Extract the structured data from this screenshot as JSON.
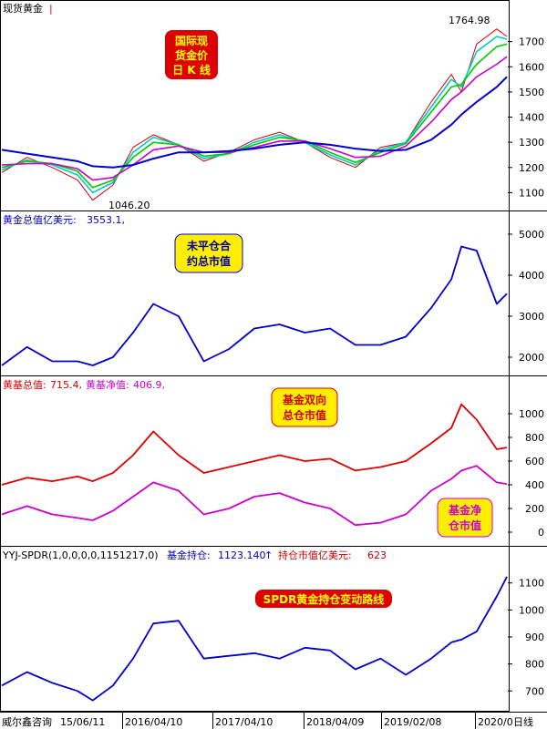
{
  "colors": {
    "blue": "#0000cc",
    "green": "#00cc00",
    "cyan": "#00cccc",
    "magenta": "#cc00cc",
    "red": "#dd0000",
    "annotation_red_bg": "#dd0000",
    "annotation_yellow_bg": "#ffee00",
    "annotation_yellow_text": "#cc0000",
    "annotation_blue_text": "#000099"
  },
  "footer": {
    "source": "威尔鑫咨询",
    "date_start": "15/06/11",
    "dates": [
      "2016/04/10",
      "2017/04/10",
      "2018/04/09",
      "2019/02/08",
      "2020/0"
    ],
    "period": "日线"
  },
  "chart_data": [
    {
      "id": "spot-gold",
      "type": "line",
      "header": {
        "name": "现货黄金",
        "suffix": "|"
      },
      "annotation": [
        "国际现",
        "货金价",
        "日 K 线"
      ],
      "ylim": [
        1040,
        1800
      ],
      "yticks": [
        1100,
        1200,
        1300,
        1400,
        1500,
        1600,
        1700
      ],
      "labels": {
        "max": "1764.98",
        "min": "1046.20"
      },
      "x": [
        0,
        5,
        10,
        15,
        18,
        22,
        26,
        30,
        35,
        40,
        45,
        50,
        55,
        60,
        65,
        70,
        75,
        80,
        85,
        89,
        91,
        94,
        98,
        100
      ],
      "series": [
        {
          "role": "price",
          "values": [
            1180,
            1240,
            1200,
            1150,
            1070,
            1130,
            1280,
            1330,
            1290,
            1225,
            1260,
            1310,
            1340,
            1300,
            1240,
            1200,
            1280,
            1300,
            1460,
            1570,
            1500,
            1690,
            1750,
            1720
          ]
        },
        {
          "role": "ma1",
          "values": [
            1190,
            1230,
            1210,
            1170,
            1100,
            1140,
            1260,
            1320,
            1290,
            1235,
            1255,
            1300,
            1330,
            1300,
            1250,
            1210,
            1270,
            1300,
            1440,
            1550,
            1520,
            1660,
            1720,
            1710
          ]
        },
        {
          "role": "ma2",
          "values": [
            1200,
            1225,
            1215,
            1185,
            1120,
            1150,
            1240,
            1300,
            1290,
            1245,
            1255,
            1290,
            1320,
            1305,
            1260,
            1220,
            1260,
            1295,
            1420,
            1520,
            1530,
            1610,
            1680,
            1690
          ]
        },
        {
          "role": "ma3",
          "values": [
            1210,
            1215,
            1215,
            1195,
            1150,
            1160,
            1210,
            1270,
            1285,
            1260,
            1260,
            1280,
            1305,
            1305,
            1275,
            1240,
            1245,
            1285,
            1380,
            1470,
            1500,
            1560,
            1610,
            1640
          ]
        },
        {
          "role": "ma4",
          "values": [
            1270,
            1255,
            1240,
            1225,
            1205,
            1200,
            1210,
            1235,
            1260,
            1260,
            1265,
            1275,
            1290,
            1300,
            1290,
            1275,
            1265,
            1270,
            1310,
            1370,
            1410,
            1460,
            1520,
            1560
          ]
        }
      ]
    },
    {
      "id": "gold-total-value",
      "type": "line",
      "header": {
        "label": "黄金总值亿美元:",
        "value": "3553.1,"
      },
      "annotation": [
        "未平仓合",
        "约总市值"
      ],
      "ylim": [
        1600,
        5200
      ],
      "yticks": [
        2000,
        3000,
        4000,
        5000
      ],
      "x": [
        0,
        5,
        10,
        15,
        18,
        22,
        26,
        30,
        35,
        40,
        45,
        50,
        55,
        60,
        65,
        70,
        75,
        80,
        85,
        89,
        91,
        94,
        98,
        100
      ],
      "series": [
        {
          "values": [
            1800,
            2250,
            1900,
            1900,
            1800,
            2000,
            2600,
            3300,
            3000,
            1900,
            2200,
            2700,
            2800,
            2600,
            2700,
            2300,
            2300,
            2500,
            3200,
            3900,
            4700,
            4600,
            3300,
            3550
          ]
        }
      ]
    },
    {
      "id": "etf-value",
      "type": "line",
      "header": {
        "label1": "黄基总值:",
        "value1": "715.4,",
        "label2": "黄基净值:",
        "value2": "406.9,"
      },
      "annotations": [
        [
          "基金双向",
          "总仓市值"
        ],
        [
          "基金净",
          "仓市值"
        ]
      ],
      "ylim": [
        -100,
        1200
      ],
      "yticks": [
        0,
        200,
        400,
        600,
        800,
        1000
      ],
      "x": [
        0,
        5,
        10,
        15,
        18,
        22,
        26,
        30,
        35,
        40,
        45,
        50,
        55,
        60,
        65,
        70,
        75,
        80,
        85,
        89,
        91,
        94,
        98,
        100
      ],
      "series": [
        {
          "role": "total",
          "values": [
            400,
            460,
            430,
            470,
            430,
            500,
            650,
            850,
            650,
            500,
            550,
            600,
            650,
            600,
            620,
            520,
            550,
            600,
            750,
            880,
            1080,
            950,
            700,
            715
          ]
        },
        {
          "role": "net",
          "values": [
            150,
            220,
            150,
            120,
            100,
            180,
            300,
            420,
            350,
            150,
            200,
            300,
            330,
            250,
            200,
            60,
            80,
            150,
            350,
            450,
            520,
            560,
            420,
            407
          ]
        }
      ]
    },
    {
      "id": "spdr-holdings",
      "type": "line",
      "header": {
        "indicator": "YYJ-SPDR(1,0,0,0,0,1151217,0)",
        "label1": "基金持仓:",
        "value1": "1123.140",
        "arrow": "↑",
        "label2": "持仓市值亿美元:",
        "value2": "623"
      },
      "annotation": [
        "SPDR黄金持仓变动路线"
      ],
      "ylim": [
        630,
        1180
      ],
      "yticks": [
        700,
        800,
        900,
        1000,
        1100
      ],
      "x": [
        0,
        5,
        10,
        15,
        18,
        22,
        26,
        30,
        35,
        40,
        45,
        50,
        55,
        60,
        65,
        70,
        75,
        80,
        85,
        89,
        91,
        94,
        98,
        100
      ],
      "series": [
        {
          "values": [
            720,
            770,
            730,
            700,
            665,
            720,
            820,
            950,
            960,
            820,
            830,
            840,
            820,
            860,
            850,
            780,
            820,
            760,
            820,
            880,
            890,
            920,
            1050,
            1123
          ]
        }
      ]
    }
  ]
}
